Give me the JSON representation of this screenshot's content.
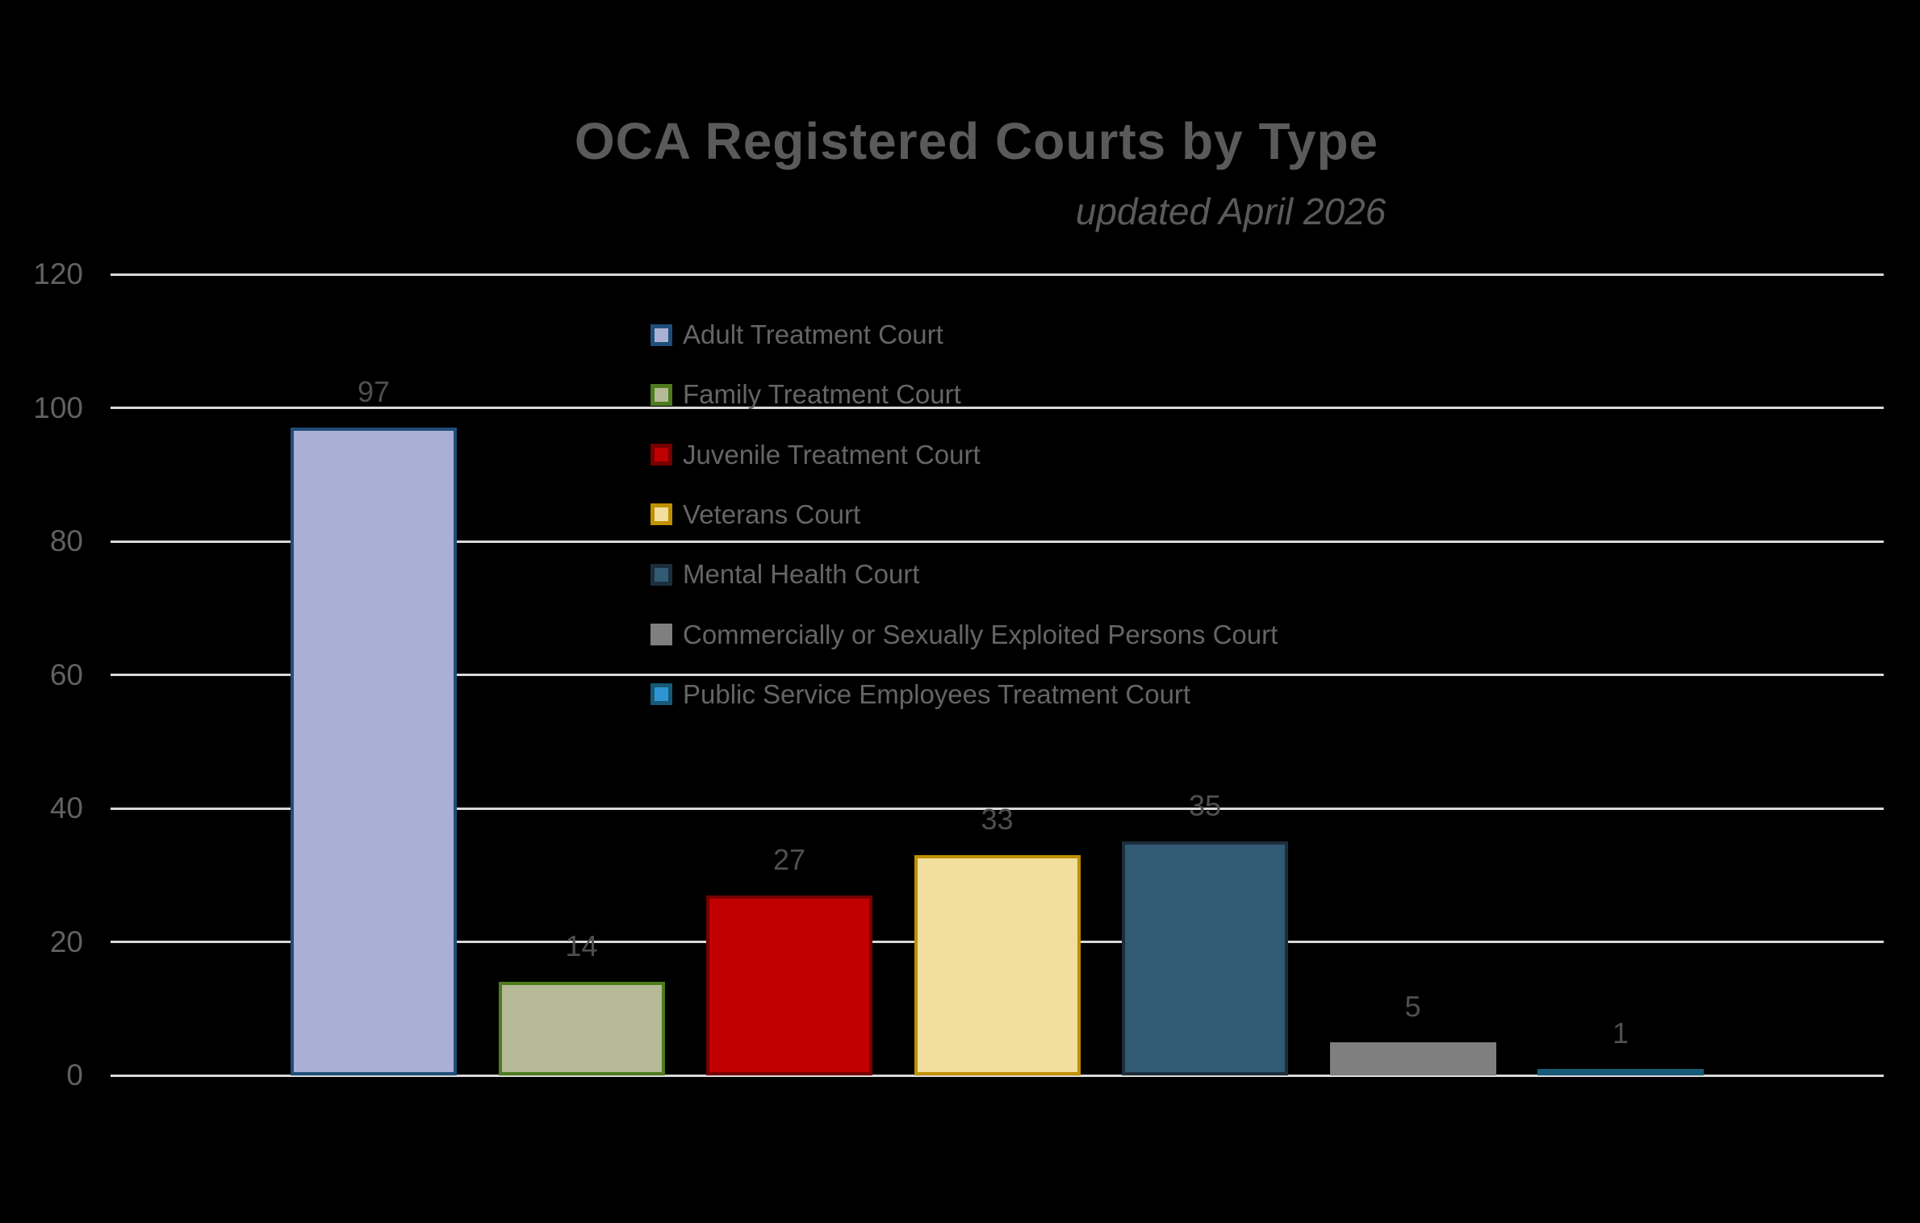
{
  "chart_data": {
    "type": "bar",
    "title": "OCA Registered Courts by Type",
    "subtitle": "updated April 2026",
    "categories": [
      "Adult Treatment Court",
      "Family Treatment Court",
      "Juvenile Treatment Court",
      "Veterans Court",
      "Mental Health Court",
      "Commercially or Sexually Exploited Persons Court",
      "Public Service Employees Treatment Court"
    ],
    "values": [
      97,
      14,
      27,
      33,
      35,
      5,
      1
    ],
    "bar_colors": [
      {
        "fill": "#a9b0d4",
        "border": "#1f4e79"
      },
      {
        "fill": "#b5b995",
        "border": "#4e7b1e"
      },
      {
        "fill": "#c00000",
        "border": "#750000"
      },
      {
        "fill": "#f2df9e",
        "border": "#bf9000"
      },
      {
        "fill": "#315a73",
        "border": "#1c2e3d"
      },
      {
        "fill": "#7f7f7f",
        "border": "#7f7f7f"
      },
      {
        "fill": "#2e95d3",
        "border": "#175a77"
      }
    ],
    "xlabel": "",
    "ylabel": "",
    "ylim": [
      0,
      120
    ],
    "yticks": [
      0,
      20,
      40,
      60,
      80,
      100,
      120
    ],
    "grid": true,
    "gridline_color": "#d9d9d9",
    "background_color": "#000000",
    "legend_position": "upper-center, vertical list",
    "data_labels": "outside-end above each bar"
  }
}
